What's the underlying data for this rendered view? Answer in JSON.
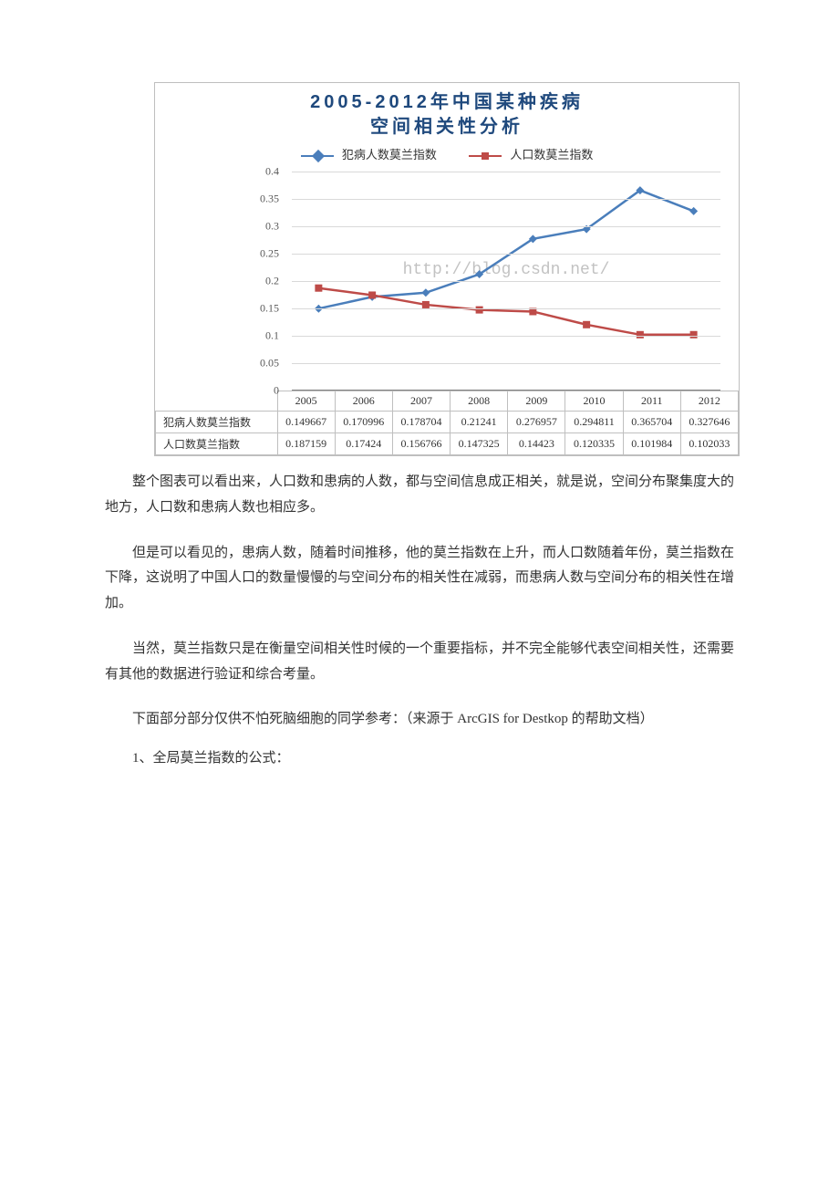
{
  "chart": {
    "type": "line",
    "title_line1": "2005-2012年中国某种疾病",
    "title_line2": "空间相关性分析",
    "title_color": "#1f497d",
    "title_fontsize": 20,
    "watermark": "http://blog.csdn.net/",
    "background_color": "#ffffff",
    "border_color": "#bfbfbf",
    "grid_color": "#d9d9d9",
    "axis_color": "#808080",
    "ylim": [
      0,
      0.4
    ],
    "ytick_step": 0.05,
    "yticks": [
      "0",
      "0.05",
      "0.1",
      "0.15",
      "0.2",
      "0.25",
      "0.3",
      "0.35",
      "0.4"
    ],
    "categories": [
      "2005",
      "2006",
      "2007",
      "2008",
      "2009",
      "2010",
      "2011",
      "2012"
    ],
    "legend": [
      {
        "label": "犯病人数莫兰指数",
        "marker": "diamond",
        "color": "#4a7ebb"
      },
      {
        "label": "人口数莫兰指数",
        "marker": "square",
        "color": "#be4b48"
      }
    ],
    "series": [
      {
        "name": "犯病人数莫兰指数",
        "color": "#4a7ebb",
        "marker": "diamond",
        "line_width": 2.5,
        "marker_size": 9,
        "values": [
          0.149667,
          0.170996,
          0.178704,
          0.21241,
          0.276957,
          0.294811,
          0.365704,
          0.327646
        ]
      },
      {
        "name": "人口数莫兰指数",
        "color": "#be4b48",
        "marker": "square",
        "line_width": 2.5,
        "marker_size": 8,
        "values": [
          0.187159,
          0.17424,
          0.156766,
          0.147325,
          0.14423,
          0.120335,
          0.101984,
          0.102033
        ]
      }
    ],
    "table": {
      "row_labels": [
        "犯病人数莫兰指数",
        "人口数莫兰指数"
      ],
      "rows": [
        [
          "0.149667",
          "0.170996",
          "0.178704",
          "0.21241",
          "0.276957",
          "0.294811",
          "0.365704",
          "0.327646"
        ],
        [
          "0.187159",
          "0.17424",
          "0.156766",
          "0.147325",
          "0.14423",
          "0.120335",
          "0.101984",
          "0.102033"
        ]
      ]
    }
  },
  "paragraphs": {
    "p1": "整个图表可以看出来，人口数和患病的人数，都与空间信息成正相关，就是说，空间分布聚集度大的地方，人口数和患病人数也相应多。",
    "p2": "但是可以看见的，患病人数，随着时间推移，他的莫兰指数在上升，而人口数随着年份，莫兰指数在下降，这说明了中国人口的数量慢慢的与空间分布的相关性在减弱，而患病人数与空间分布的相关性在增加。",
    "p3": "当然，莫兰指数只是在衡量空间相关性时候的一个重要指标，并不完全能够代表空间相关性，还需要有其他的数据进行验证和综合考量。",
    "p4": "下面部分部分仅供不怕死脑细胞的同学参考：（来源于 ArcGIS for Destkop 的帮助文档）",
    "p5": "1、全局莫兰指数的公式："
  }
}
